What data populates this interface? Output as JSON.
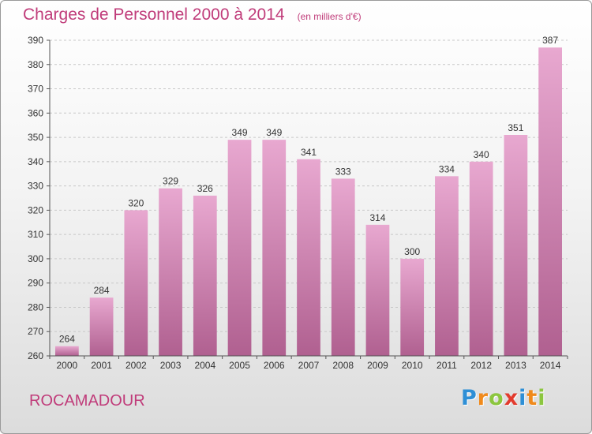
{
  "title": "Charges de Personnel 2000 à 2014",
  "subtitle": "(en milliers d'€)",
  "location": "ROCAMADOUR",
  "logo": {
    "letters": [
      "P",
      "r",
      "o",
      "x",
      "i",
      "t",
      "i"
    ],
    "colors": [
      "#2e8fd6",
      "#f08a1c",
      "#8cc63f",
      "#e23b2e",
      "#2e8fd6",
      "#f08a1c",
      "#8cc63f"
    ]
  },
  "colors": {
    "accent": "#c03c7a",
    "bar_top": "#e8a8d0",
    "bar_bottom": "#b06090"
  },
  "chart_data": {
    "type": "bar",
    "categories": [
      "2000",
      "2001",
      "2002",
      "2003",
      "2004",
      "2005",
      "2006",
      "2007",
      "2008",
      "2009",
      "2010",
      "2011",
      "2012",
      "2013",
      "2014"
    ],
    "values": [
      264,
      284,
      320,
      329,
      326,
      349,
      349,
      341,
      333,
      314,
      300,
      334,
      340,
      351,
      387
    ],
    "ylim": [
      260,
      390
    ],
    "yticks": [
      260,
      270,
      280,
      290,
      300,
      310,
      320,
      330,
      340,
      350,
      360,
      370,
      380,
      390
    ],
    "grid": true
  }
}
